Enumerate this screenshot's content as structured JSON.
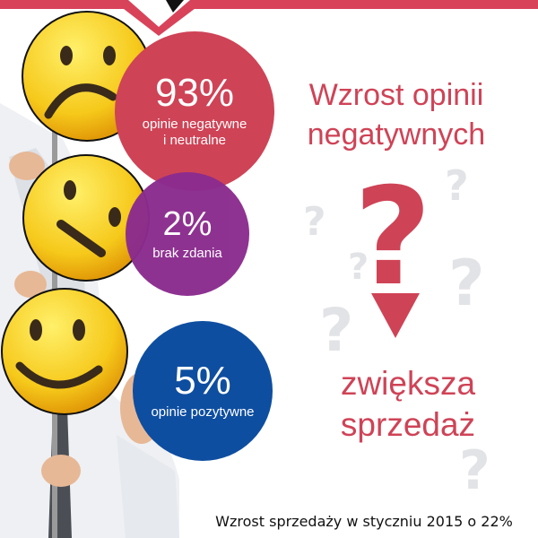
{
  "bubbles": [
    {
      "percent": "93%",
      "label_line1": "opinie negatywne",
      "label_line2": "i neutralne",
      "color": "#cf4356"
    },
    {
      "percent": "2%",
      "label_line1": "brak zdania",
      "color": "#8b2c8e"
    },
    {
      "percent": "5%",
      "label_line1": "opinie pozytywne",
      "color": "#0e4ea0"
    }
  ],
  "headline": {
    "line1": "Wzrost opinii",
    "line2": "negatywnych"
  },
  "question_mark": "?",
  "subline": {
    "line1": "zwiększa",
    "line2": "sprzedaż"
  },
  "footer": {
    "line1": "Wzrost sprzedaży w styczniu 2015 o 22%",
    "line2": ""
  },
  "icons": [
    "sad-face-icon",
    "neutral-face-icon",
    "happy-face-icon",
    "question-mark-icon",
    "down-arrow-icon"
  ],
  "colors": {
    "accent_red": "#cf4356",
    "purple": "#8b2c8e",
    "blue": "#0e4ea0",
    "smiley_yellow": "#f6c91b"
  }
}
